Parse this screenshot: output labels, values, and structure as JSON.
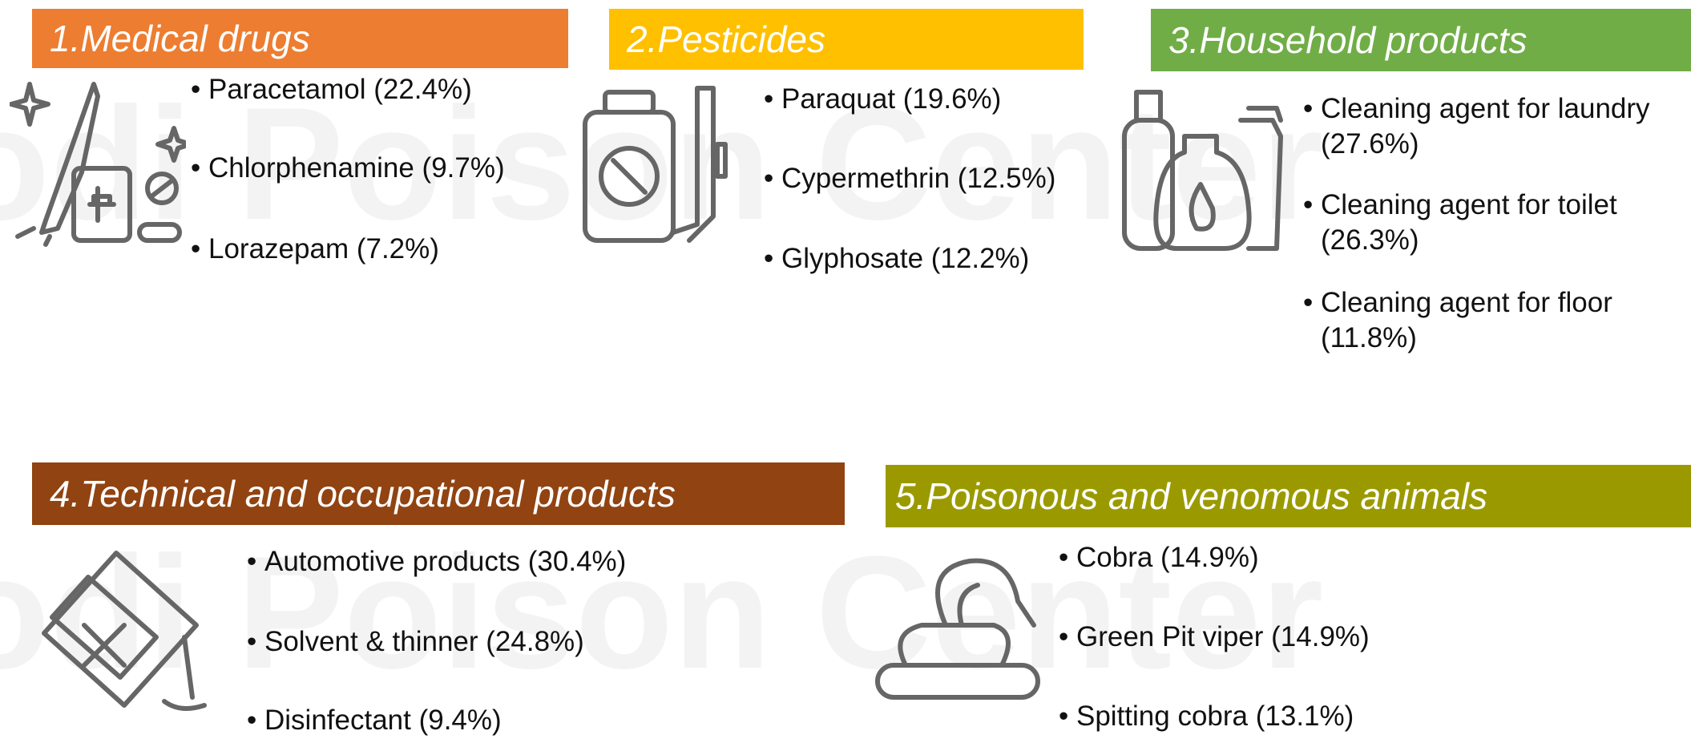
{
  "watermark": "odi Poison Center",
  "sections": [
    {
      "title": "1.Medical drugs",
      "items": [
        "Paracetamol (22.4%)",
        "Chlorphenamine (9.7%)",
        "Lorazepam  (7.2%)"
      ]
    },
    {
      "title": "2.Pesticides",
      "items": [
        "Paraquat (19.6%)",
        "Cypermethrin (12.5%)",
        "Glyphosate (12.2%)"
      ]
    },
    {
      "title": "3.Household products",
      "items": [
        "Cleaning agent for laundry  (27.6%)",
        "Cleaning agent for toilet (26.3%)",
        "Cleaning agent for floor (11.8%)"
      ]
    },
    {
      "title": "4.Technical and occupational products",
      "items": [
        "Automotive products (30.4%)",
        "Solvent & thinner (24.8%)",
        "Disinfectant  (9.4%)"
      ]
    },
    {
      "title": "5.Poisonous and venomous animals",
      "items": [
        "Cobra  (14.9%)",
        "Green Pit viper  (14.9%)",
        "Spitting cobra   (13.1%)"
      ]
    }
  ]
}
